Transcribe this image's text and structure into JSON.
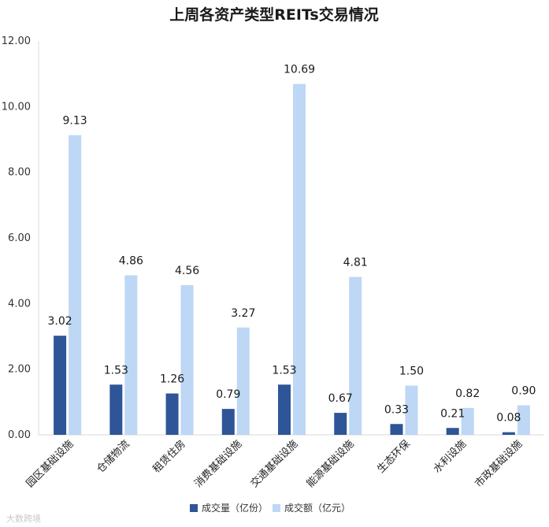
{
  "chart_data": {
    "type": "bar",
    "title": "上周各资产类型REITs交易情况",
    "categories": [
      "园区基础设施",
      "仓储物流",
      "租赁住房",
      "消费基础设施",
      "交通基础设施",
      "能源基础设施",
      "生态环保",
      "水利设施",
      "市政基础设施"
    ],
    "series": [
      {
        "name": "成交量（亿份）",
        "color": "#2e5597",
        "values": [
          3.02,
          1.53,
          1.26,
          0.79,
          1.53,
          0.67,
          0.33,
          0.21,
          0.08
        ]
      },
      {
        "name": "成交额（亿元）",
        "color": "#bdd7f5",
        "values": [
          9.13,
          4.86,
          4.56,
          3.27,
          10.69,
          4.81,
          1.5,
          0.82,
          0.9
        ]
      }
    ],
    "ylim": [
      0,
      12
    ],
    "yticks": [
      "0.00",
      "2.00",
      "4.00",
      "6.00",
      "8.00",
      "10.00",
      "12.00"
    ],
    "data_labels": [
      [
        "3.02",
        "1.53",
        "1.26",
        "0.79",
        "1.53",
        "0.67",
        "0.33",
        "0.21",
        "0.08"
      ],
      [
        "9.13",
        "4.86",
        "4.56",
        "3.27",
        "10.69",
        "4.81",
        "1.50",
        "0.82",
        "0.90"
      ]
    ],
    "legend_position": "bottom-center",
    "xlabel": "",
    "ylabel": ""
  },
  "watermark": "大数跨境"
}
